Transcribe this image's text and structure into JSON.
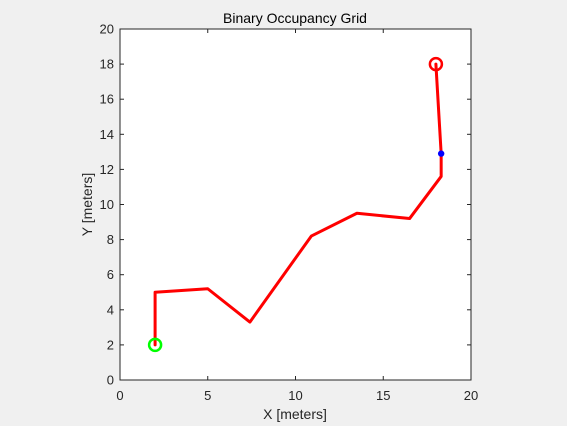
{
  "window": {
    "background": "#f0f0f0"
  },
  "chart_data": {
    "type": "line",
    "title": "Binary Occupancy Grid",
    "xlabel": "X [meters]",
    "ylabel": "Y [meters]",
    "xlim": [
      0,
      20
    ],
    "ylim": [
      0,
      20
    ],
    "xticks": [
      0,
      5,
      10,
      15,
      20
    ],
    "yticks": [
      0,
      2,
      4,
      6,
      8,
      10,
      12,
      14,
      16,
      18,
      20
    ],
    "grid": false,
    "series": [
      {
        "type": "line",
        "color": "#ff0000",
        "x": [
          2.0,
          2.0,
          5.0,
          7.4,
          10.9,
          13.5,
          16.5,
          18.3,
          18.3,
          18.0
        ],
        "y": [
          2.0,
          5.0,
          5.2,
          3.3,
          8.2,
          9.5,
          9.2,
          11.6,
          12.9,
          18.0
        ]
      }
    ],
    "markers": [
      {
        "shape": "circle",
        "color": "#00ff00",
        "x": 2.0,
        "y": 2.0
      },
      {
        "shape": "circle",
        "color": "#ff0000",
        "x": 18.0,
        "y": 18.0
      },
      {
        "shape": "dot",
        "color": "#0000ff",
        "x": 18.3,
        "y": 12.9
      }
    ]
  }
}
